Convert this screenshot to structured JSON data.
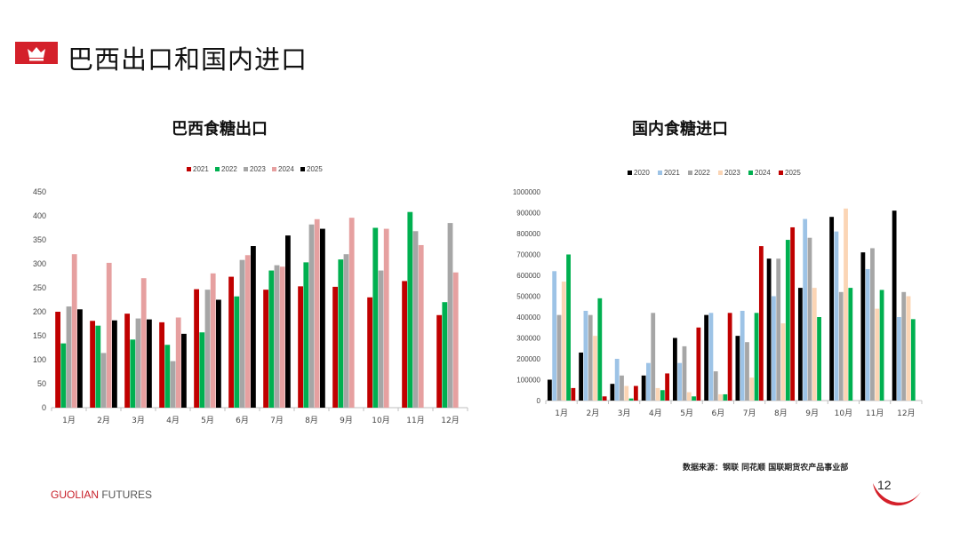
{
  "header": {
    "title": "巴西出口和国内进口"
  },
  "footer": {
    "brand_a": "GUOLIAN",
    "brand_b": " FUTURES",
    "page": "12",
    "source": "数据来源：钢联  同花顺  国联期货农产品事业部"
  },
  "colors": {
    "accent": "#d4202a"
  },
  "chart_data": [
    {
      "type": "bar",
      "title": "巴西食糖出口",
      "categories": [
        "1月",
        "2月",
        "3月",
        "4月",
        "5月",
        "6月",
        "7月",
        "8月",
        "9月",
        "10月",
        "11月",
        "12月"
      ],
      "ylim": [
        0,
        450
      ],
      "yticks": [
        0,
        50,
        100,
        150,
        200,
        250,
        300,
        350,
        400,
        450
      ],
      "legend": "top",
      "grid": false,
      "series": [
        {
          "name": "2021",
          "color": "#c00000",
          "values": [
            200,
            181,
            196,
            178,
            247,
            273,
            246,
            253,
            252,
            230,
            264,
            193
          ]
        },
        {
          "name": "2022",
          "color": "#00b050",
          "values": [
            134,
            171,
            142,
            131,
            157,
            232,
            286,
            303,
            309,
            375,
            408,
            220
          ]
        },
        {
          "name": "2023",
          "color": "#a6a6a6",
          "values": [
            211,
            114,
            186,
            97,
            246,
            308,
            297,
            382,
            320,
            286,
            368,
            385
          ]
        },
        {
          "name": "2024",
          "color": "#e6a0a0",
          "values": [
            320,
            302,
            270,
            188,
            280,
            318,
            294,
            393,
            396,
            373,
            339,
            282
          ]
        },
        {
          "name": "2025",
          "color": "#000000",
          "values": [
            205,
            182,
            184,
            154,
            225,
            337,
            359,
            373,
            null,
            null,
            null,
            null
          ]
        }
      ]
    },
    {
      "type": "bar",
      "title": "国内食糖进口",
      "categories": [
        "1月",
        "2月",
        "3月",
        "4月",
        "5月",
        "6月",
        "7月",
        "8月",
        "9月",
        "10月",
        "11月",
        "12月"
      ],
      "ylim": [
        0,
        1000000
      ],
      "yticks": [
        0,
        100000,
        200000,
        300000,
        400000,
        500000,
        600000,
        700000,
        800000,
        900000,
        1000000
      ],
      "legend": "top",
      "grid": false,
      "series": [
        {
          "name": "2020",
          "color": "#000000",
          "values": [
            100000,
            230000,
            80000,
            120000,
            300000,
            410000,
            310000,
            680000,
            540000,
            880000,
            710000,
            910000
          ]
        },
        {
          "name": "2021",
          "color": "#9dc3e6",
          "values": [
            620000,
            430000,
            200000,
            180000,
            180000,
            420000,
            430000,
            500000,
            870000,
            810000,
            630000,
            400000
          ]
        },
        {
          "name": "2022",
          "color": "#a6a6a6",
          "values": [
            410000,
            410000,
            120000,
            420000,
            260000,
            140000,
            280000,
            680000,
            780000,
            520000,
            730000,
            520000
          ]
        },
        {
          "name": "2023",
          "color": "#fbd5b5",
          "values": [
            570000,
            310000,
            70000,
            60000,
            40000,
            30000,
            110000,
            370000,
            540000,
            920000,
            440000,
            500000
          ]
        },
        {
          "name": "2024",
          "color": "#00b050",
          "values": [
            700000,
            490000,
            10000,
            50000,
            20000,
            30000,
            420000,
            770000,
            400000,
            540000,
            530000,
            390000
          ]
        },
        {
          "name": "2025",
          "color": "#c00000",
          "values": [
            60000,
            20000,
            70000,
            130000,
            350000,
            420000,
            740000,
            830000,
            null,
            null,
            null,
            null
          ]
        }
      ]
    }
  ]
}
